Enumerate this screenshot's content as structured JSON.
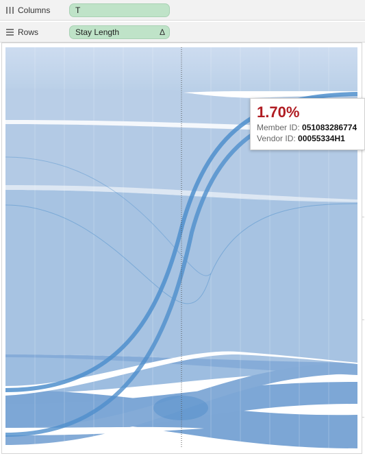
{
  "shelves": {
    "columns": {
      "label": "Columns",
      "icon": "columns-grid-icon",
      "pill": "T"
    },
    "rows": {
      "label": "Rows",
      "icon": "rows-list-icon",
      "pill": "Stay Length",
      "pill_marker": "Δ"
    }
  },
  "tooltip": {
    "value": "1.70%",
    "member_label": "Member ID:",
    "member_value": "051083286774",
    "vendor_label": "Vendor ID:",
    "vendor_value": "00055334H1",
    "accent_color": "#b01c22"
  },
  "chart_data": {
    "type": "area",
    "title": "",
    "xlabel": "",
    "ylabel": "",
    "legend": "none",
    "grid": true,
    "band_color": "#7faad4",
    "highlight_color": "#4f8fcc",
    "reference_line": "dotted vertical line at mid-chart"
  }
}
